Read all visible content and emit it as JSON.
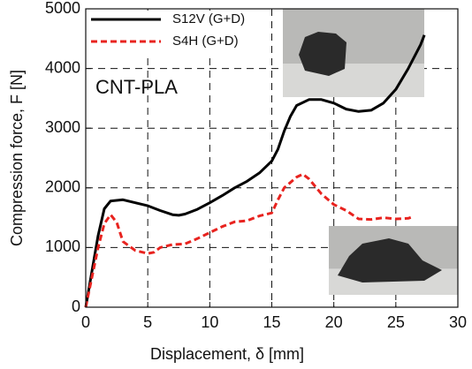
{
  "chart_data": {
    "type": "line",
    "x_label": "Displacement, δ  [mm]",
    "y_label": "Compression force, F [N]",
    "annotation": "CNT-PLA",
    "xlim": [
      0,
      30
    ],
    "xticks": [
      0,
      5,
      10,
      15,
      20,
      25,
      30
    ],
    "ylim": [
      0,
      5000
    ],
    "yticks": [
      0,
      1000,
      2000,
      3000,
      4000,
      5000
    ],
    "grid": true,
    "legend": "upper left",
    "series": [
      {
        "name": "S12V (G+D)",
        "color": "#000000",
        "dash": "solid",
        "x": [
          0,
          0.5,
          1,
          1.5,
          2,
          3,
          4,
          5,
          6,
          7,
          7.5,
          8,
          9,
          10,
          11,
          12,
          13,
          14,
          15,
          15.5,
          16,
          16.5,
          17,
          18,
          19,
          20,
          21,
          22,
          23,
          24,
          25,
          26,
          27,
          27.3
        ],
        "values": [
          0,
          600,
          1200,
          1650,
          1780,
          1800,
          1750,
          1700,
          1620,
          1550,
          1540,
          1560,
          1640,
          1750,
          1870,
          2000,
          2110,
          2250,
          2450,
          2650,
          2950,
          3200,
          3380,
          3480,
          3480,
          3420,
          3320,
          3280,
          3300,
          3420,
          3650,
          4000,
          4400,
          4560
        ]
      },
      {
        "name": "S4H (G+D)",
        "color": "#e8231f",
        "dash": "dashed",
        "x": [
          0,
          0.5,
          1,
          1.5,
          2,
          2.5,
          3,
          4,
          5,
          5.5,
          6,
          7,
          8,
          9,
          10,
          11,
          12,
          13,
          14,
          15,
          15.5,
          16,
          17,
          17.5,
          18,
          19,
          20,
          21,
          22,
          23,
          24,
          25,
          26,
          26.3
        ],
        "values": [
          0,
          500,
          1000,
          1400,
          1550,
          1420,
          1100,
          950,
          900,
          920,
          1000,
          1050,
          1060,
          1150,
          1250,
          1350,
          1430,
          1450,
          1530,
          1580,
          1800,
          2000,
          2180,
          2230,
          2150,
          1900,
          1720,
          1620,
          1480,
          1470,
          1500,
          1480,
          1490,
          1510
        ]
      }
    ]
  }
}
